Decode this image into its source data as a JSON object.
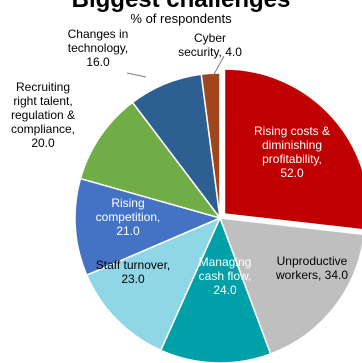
{
  "chart_data": {
    "type": "pie",
    "title": "Biggest challenges",
    "subtitle": "% of respondents",
    "categories": [
      "Rising costs & diminishing profitability",
      "Unproductive workers",
      "Managing cash flow",
      "Staff turnover",
      "Rising competition",
      "Recruiting right talent, regulation & compliance",
      "Changes in technology",
      "Cyber security"
    ],
    "values": [
      52.0,
      34.0,
      24.0,
      23.0,
      21.0,
      20.0,
      16.0,
      4.0
    ],
    "labels": [
      [
        "Rising costs &",
        "diminishing",
        "profitability,",
        "52.0"
      ],
      [
        "Unproductive",
        "workers, 34.0"
      ],
      [
        "Managing",
        "cash flow,",
        "24.0"
      ],
      [
        "Staff turnover,",
        "23.0"
      ],
      [
        "Rising",
        "competition,",
        "21.0"
      ],
      [
        "Recruiting",
        "right talent,",
        "regulation &",
        "compliance,",
        "20.0"
      ],
      [
        "Changes in",
        "technology,",
        "16.0"
      ],
      [
        "Cyber",
        "security, 4.0"
      ]
    ],
    "colors": [
      "#c00000",
      "#bfbfbf",
      "#00a0a8",
      "#8fd6e6",
      "#4472c4",
      "#70ad47",
      "#2e5f93",
      "#a0461c"
    ],
    "label_colors": [
      "#ffffff",
      "#000000",
      "#ffffff",
      "#000000",
      "#ffffff",
      "#000000",
      "#000000",
      "#000000"
    ]
  }
}
